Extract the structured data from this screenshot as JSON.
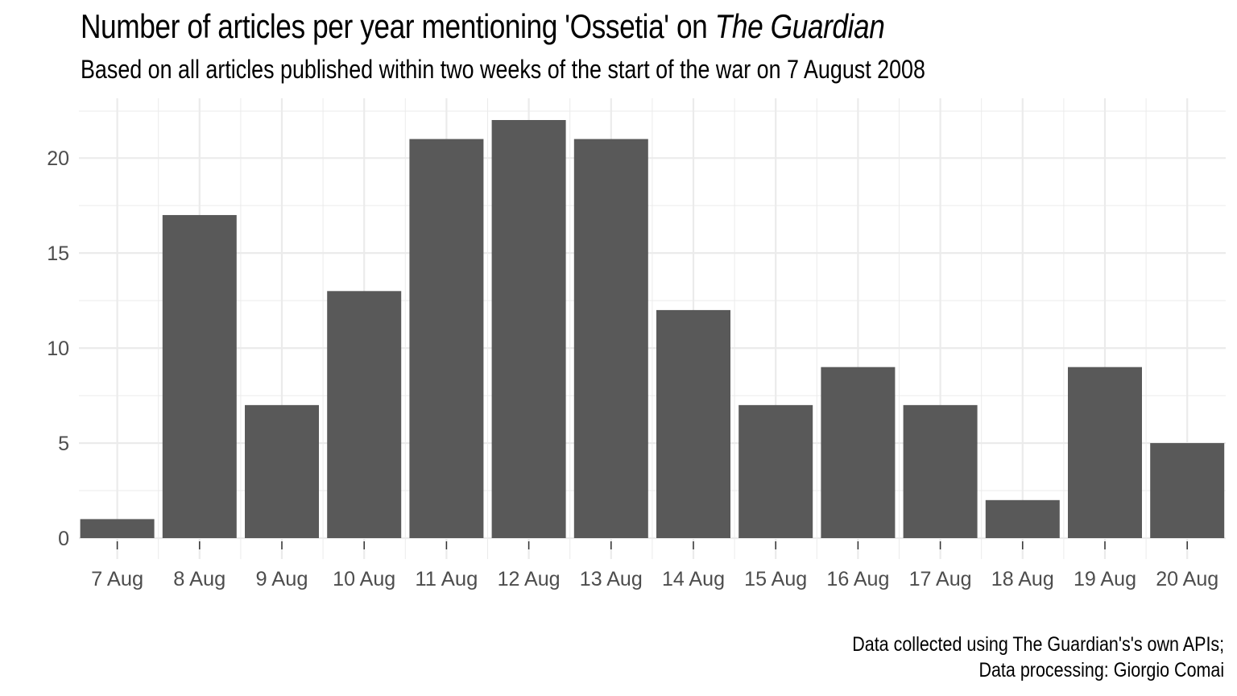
{
  "title": {
    "main": "Number of articles per year mentioning 'Ossetia' on ",
    "emphasis": "The Guardian"
  },
  "subtitle": "Based on all articles published within two weeks of the start of the war on 7 August 2008",
  "caption": {
    "line1": "Data collected using The Guardian's's own APIs;",
    "line2": "Data processing: Giorgio Comai"
  },
  "chart_data": {
    "type": "bar",
    "categories": [
      "7 Aug",
      "8 Aug",
      "9 Aug",
      "10 Aug",
      "11 Aug",
      "12 Aug",
      "13 Aug",
      "14 Aug",
      "15 Aug",
      "16 Aug",
      "17 Aug",
      "18 Aug",
      "19 Aug",
      "20 Aug"
    ],
    "values": [
      1,
      17,
      7,
      13,
      21,
      22,
      21,
      12,
      7,
      9,
      7,
      2,
      9,
      5
    ],
    "title": "Number of articles per year mentioning 'Ossetia' on The Guardian",
    "subtitle": "Based on all articles published within two weeks of the start of the war on 7 August 2008",
    "xlabel": "",
    "ylabel": "",
    "ylim": [
      0,
      22
    ],
    "yticks": [
      0,
      5,
      10,
      15,
      20
    ],
    "grid": true,
    "legend": "none",
    "bar_color": "#595959",
    "grid_color": "#ebebeb",
    "tick_label_color": "#4d4d4d"
  }
}
